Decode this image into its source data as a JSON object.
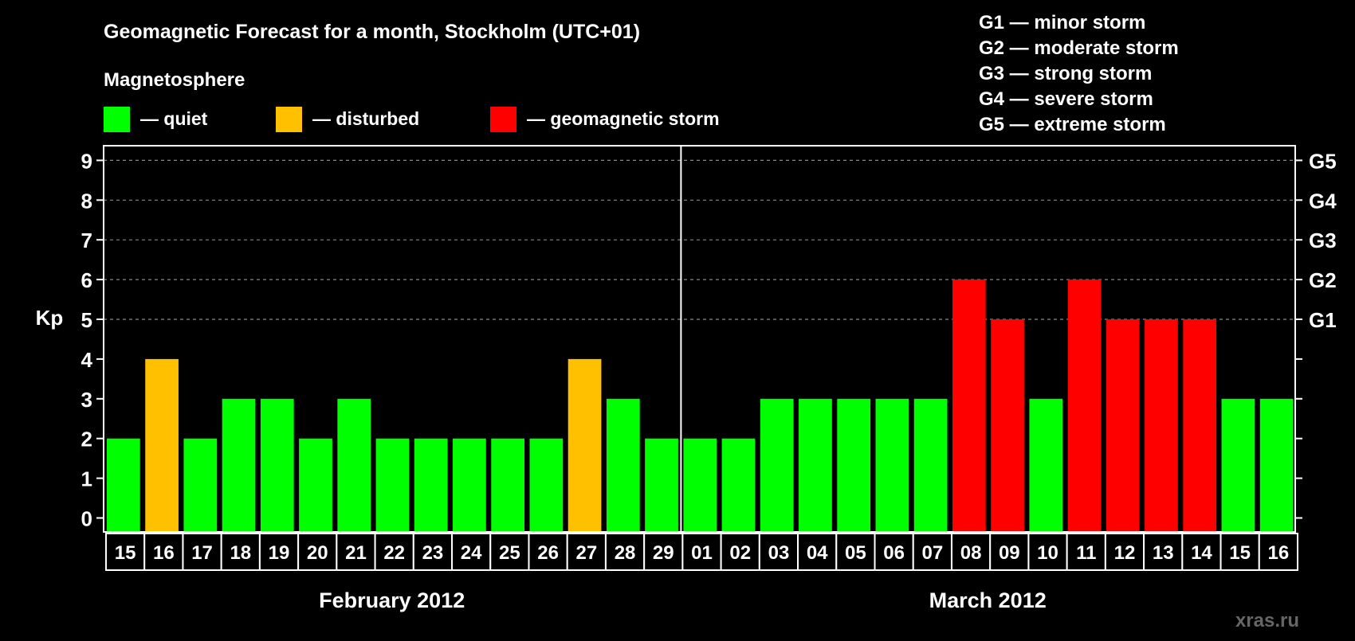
{
  "chart_data": {
    "type": "bar",
    "title": "Geomagnetic Forecast for a month, Stockholm (UTC+01)",
    "legend_heading": "Magnetosphere",
    "legend": [
      {
        "label": "— quiet",
        "color": "#00ff00"
      },
      {
        "label": "— disturbed",
        "color": "#ffc000"
      },
      {
        "label": "— geomagnetic storm",
        "color": "#ff0000"
      }
    ],
    "storm_scale": [
      "G1 — minor storm",
      "G2 — moderate storm",
      "G3 — strong storm",
      "G4 — severe storm",
      "G5 — extreme storm"
    ],
    "ylabel": "Kp",
    "ylim": [
      0,
      9
    ],
    "yticks": [
      "0",
      "1",
      "2",
      "3",
      "4",
      "5",
      "6",
      "7",
      "8",
      "9"
    ],
    "right_ticks": [
      {
        "kp": 5,
        "label": "G1"
      },
      {
        "kp": 6,
        "label": "G2"
      },
      {
        "kp": 7,
        "label": "G3"
      },
      {
        "kp": 8,
        "label": "G4"
      },
      {
        "kp": 9,
        "label": "G5"
      }
    ],
    "grid": "dashed at Kp 5-9",
    "categories": [
      "15",
      "16",
      "17",
      "18",
      "19",
      "20",
      "21",
      "22",
      "23",
      "24",
      "25",
      "26",
      "27",
      "28",
      "29",
      "01",
      "02",
      "03",
      "04",
      "05",
      "06",
      "07",
      "08",
      "09",
      "10",
      "11",
      "12",
      "13",
      "14",
      "15",
      "16"
    ],
    "values": [
      2,
      4,
      2,
      3,
      3,
      2,
      3,
      2,
      2,
      2,
      2,
      2,
      4,
      3,
      2,
      2,
      2,
      3,
      3,
      3,
      3,
      3,
      6,
      5,
      3,
      6,
      5,
      5,
      5,
      3,
      3
    ],
    "months": [
      {
        "label": "February 2012",
        "days": 15
      },
      {
        "label": "March 2012",
        "days": 16
      }
    ],
    "colors": {
      "quiet": "#00ff00",
      "disturbed": "#ffc000",
      "storm": "#ff0000"
    }
  },
  "watermark": "xras.ru"
}
